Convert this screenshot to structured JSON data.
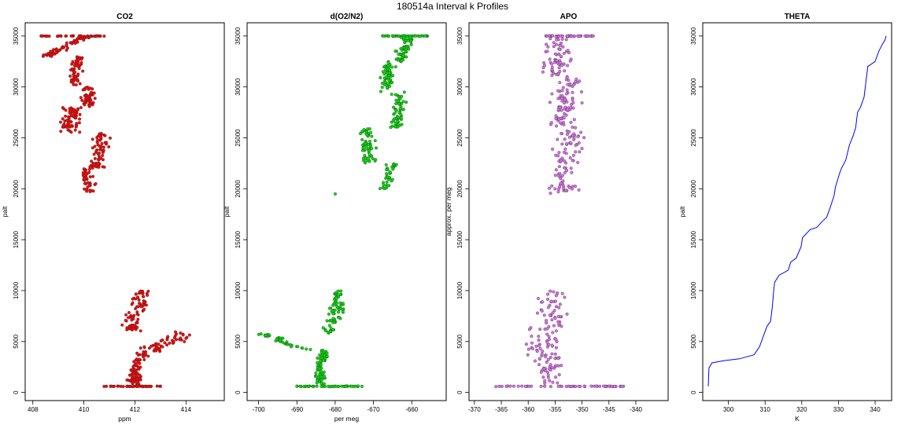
{
  "title": "180514a   Interval k Profiles",
  "chart_data": [
    {
      "type": "scatter",
      "title": "CO2",
      "xlabel": "ppm",
      "ylabel": "palt",
      "xlim": [
        407.7,
        415.5
      ],
      "ylim": [
        -800,
        36300
      ],
      "xticks": [
        408,
        410,
        412,
        414
      ],
      "yticks": [
        0,
        5000,
        10000,
        15000,
        20000,
        25000,
        30000,
        35000
      ],
      "color": "#ff0000",
      "line": false,
      "segments": [
        {
          "y": [
            35000,
            35000
          ],
          "x": [
            408.3,
            410.8
          ],
          "n": 40,
          "jitter": 0.08
        },
        {
          "y": [
            33000,
            35000
          ],
          "x": [
            408.5,
            410.1
          ],
          "n": 60,
          "jitter": 0.4
        },
        {
          "y": [
            30000,
            33000
          ],
          "x": [
            409.6,
            409.8
          ],
          "n": 60,
          "jitter": 0.35
        },
        {
          "y": [
            28000,
            30000
          ],
          "x": [
            410.2,
            410.2
          ],
          "n": 50,
          "jitter": 0.4
        },
        {
          "y": [
            25500,
            28000
          ],
          "x": [
            409.4,
            409.5
          ],
          "n": 70,
          "jitter": 0.5
        },
        {
          "y": [
            22000,
            25500
          ],
          "x": [
            410.5,
            410.7
          ],
          "n": 70,
          "jitter": 0.45
        },
        {
          "y": [
            19700,
            22000
          ],
          "x": [
            410.3,
            410.0
          ],
          "n": 40,
          "jitter": 0.4
        },
        {
          "y": [
            8000,
            10000
          ],
          "x": [
            412.1,
            412.3
          ],
          "n": 40,
          "jitter": 0.45
        },
        {
          "y": [
            6000,
            8000
          ],
          "x": [
            411.8,
            412.0
          ],
          "n": 40,
          "jitter": 0.45
        },
        {
          "y": [
            4000,
            6000
          ],
          "x": [
            412.5,
            414.0
          ],
          "n": 50,
          "jitter": 0.9
        },
        {
          "y": [
            2000,
            4000
          ],
          "x": [
            412.0,
            412.3
          ],
          "n": 40,
          "jitter": 0.35
        },
        {
          "y": [
            800,
            2000
          ],
          "x": [
            412.0,
            412.0
          ],
          "n": 40,
          "jitter": 0.4
        },
        {
          "y": [
            600,
            600
          ],
          "x": [
            410.8,
            413.0
          ],
          "n": 45,
          "jitter": 0.05
        }
      ]
    },
    {
      "type": "scatter",
      "title": "d(O2/N2)",
      "xlabel": "per meg",
      "ylabel": "palt",
      "xlim": [
        -703,
        -651
      ],
      "ylim": [
        -800,
        36300
      ],
      "xticks": [
        -700,
        -690,
        -680,
        -670,
        -660
      ],
      "yticks": [
        0,
        5000,
        10000,
        15000,
        20000,
        25000,
        30000,
        35000
      ],
      "color": "#00e000",
      "line": false,
      "segments": [
        {
          "y": [
            35000,
            35000
          ],
          "x": [
            -668,
            -656
          ],
          "n": 40,
          "jitter": 0.4
        },
        {
          "y": [
            32500,
            35000
          ],
          "x": [
            -663,
            -661
          ],
          "n": 60,
          "jitter": 2.5
        },
        {
          "y": [
            29500,
            32500
          ],
          "x": [
            -667,
            -666
          ],
          "n": 55,
          "jitter": 2.5
        },
        {
          "y": [
            26000,
            29500
          ],
          "x": [
            -664,
            -663
          ],
          "n": 60,
          "jitter": 2.5
        },
        {
          "y": [
            22500,
            26000
          ],
          "x": [
            -671,
            -672
          ],
          "n": 60,
          "jitter": 3.0
        },
        {
          "y": [
            20000,
            22500
          ],
          "x": [
            -667,
            -665
          ],
          "n": 35,
          "jitter": 2.0
        },
        {
          "y": [
            19500,
            19500
          ],
          "x": [
            -680,
            -680
          ],
          "n": 1,
          "jitter": 0.3
        },
        {
          "y": [
            8000,
            10000
          ],
          "x": [
            -680,
            -679
          ],
          "n": 35,
          "jitter": 3.0
        },
        {
          "y": [
            5800,
            8000
          ],
          "x": [
            -681,
            -680
          ],
          "n": 35,
          "jitter": 3.0
        },
        {
          "y": [
            4200,
            5800
          ],
          "x": [
            -688,
            -699
          ],
          "n": 40,
          "jitter": 2.5
        },
        {
          "y": [
            2500,
            4200
          ],
          "x": [
            -684,
            -683
          ],
          "n": 40,
          "jitter": 2.0
        },
        {
          "y": [
            800,
            2500
          ],
          "x": [
            -684,
            -684
          ],
          "n": 40,
          "jitter": 2.0
        },
        {
          "y": [
            600,
            600
          ],
          "x": [
            -690,
            -673
          ],
          "n": 45,
          "jitter": 0.3
        }
      ]
    },
    {
      "type": "scatter",
      "title": "APO",
      "xlabel": "",
      "ylabel": "approx. per meg",
      "xlim": [
        -371,
        -334
      ],
      "ylim": [
        -800,
        36300
      ],
      "xticks": [
        -370,
        -365,
        -360,
        -355,
        -350,
        -345,
        -340
      ],
      "yticks": [
        0,
        5000,
        10000,
        15000,
        20000,
        25000,
        30000,
        35000
      ],
      "color": "#e070f0",
      "line": false,
      "segments": [
        {
          "y": [
            35000,
            35000
          ],
          "x": [
            -357,
            -348
          ],
          "n": 40,
          "jitter": 0.4
        },
        {
          "y": [
            31000,
            35000
          ],
          "x": [
            -355,
            -354
          ],
          "n": 70,
          "jitter": 3.5
        },
        {
          "y": [
            26000,
            31000
          ],
          "x": [
            -354,
            -352
          ],
          "n": 80,
          "jitter": 3.5
        },
        {
          "y": [
            19500,
            26000
          ],
          "x": [
            -354,
            -352
          ],
          "n": 90,
          "jitter": 4.0
        },
        {
          "y": [
            6500,
            10000
          ],
          "x": [
            -355,
            -356
          ],
          "n": 45,
          "jitter": 4.0
        },
        {
          "y": [
            3500,
            6500
          ],
          "x": [
            -356,
            -357
          ],
          "n": 45,
          "jitter": 5.0
        },
        {
          "y": [
            800,
            3500
          ],
          "x": [
            -356,
            -356
          ],
          "n": 40,
          "jitter": 3.5
        },
        {
          "y": [
            600,
            600
          ],
          "x": [
            -366,
            -342
          ],
          "n": 55,
          "jitter": 0.3
        }
      ]
    },
    {
      "type": "line",
      "title": "THETA",
      "xlabel": "K",
      "ylabel": "palt",
      "xlim": [
        293,
        344.5
      ],
      "ylim": [
        -800,
        36300
      ],
      "xticks": [
        300,
        310,
        320,
        330,
        340
      ],
      "yticks": [
        0,
        5000,
        10000,
        15000,
        20000,
        25000,
        30000,
        35000
      ],
      "color": "#0000ff",
      "line": true,
      "x": [
        294.5,
        294.7,
        295.5,
        298.5,
        303,
        307,
        308.5,
        309.5,
        310.5,
        311.5,
        312,
        312.3,
        312.6,
        313.8,
        316.3,
        317.0,
        318.5,
        319.8,
        320.2,
        322.3,
        324.1,
        325.6,
        326.8,
        327.6,
        328.8,
        329.2,
        330.3,
        330.8,
        332.0,
        333.0,
        334.0,
        334.7,
        335.2,
        336.0,
        337.0,
        338.0,
        340.0,
        341.0,
        342.0,
        342.7,
        343.0
      ],
      "y": [
        600,
        2400,
        2900,
        3100,
        3300,
        3700,
        4500,
        5500,
        6500,
        7000,
        8500,
        9800,
        10800,
        11500,
        12000,
        12800,
        13200,
        14300,
        15200,
        16000,
        16200,
        16800,
        17200,
        18000,
        19300,
        20200,
        21500,
        22000,
        22800,
        24300,
        25200,
        26000,
        27500,
        28000,
        29000,
        32000,
        32500,
        33500,
        34200,
        34600,
        35000
      ]
    }
  ]
}
